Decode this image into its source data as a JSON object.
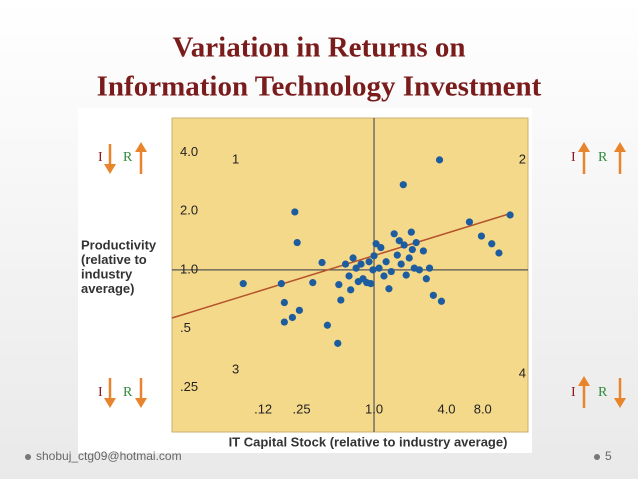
{
  "slide": {
    "title": [
      "Variation in Returns on",
      "Information Technology Investment"
    ],
    "footer": "shobuj_ctg09@hotmai.com",
    "page_number": "5"
  },
  "quadrant_indicators": [
    {
      "investment": "I",
      "returns": "R"
    },
    {
      "investment": "I",
      "returns": "R"
    },
    {
      "investment": "I",
      "returns": "R"
    },
    {
      "investment": "I",
      "returns": "R"
    }
  ],
  "chart_data": {
    "type": "scatter",
    "xlabel": "IT Capital Stock (relative to industry average)",
    "ylabel": [
      "Productivity",
      "(relative to",
      "industry",
      "average)"
    ],
    "quadrants": [
      "1",
      "2",
      "3",
      "4"
    ],
    "xscale": "log",
    "yscale": "log",
    "xlim": [
      0.021,
      19
    ],
    "ylim": [
      0.17,
      6
    ],
    "xticks": [
      {
        "value": 0.12,
        "label": ".12"
      },
      {
        "value": 0.25,
        "label": ".25"
      },
      {
        "value": 1,
        "label": "1.0"
      },
      {
        "value": 4,
        "label": "4.0"
      },
      {
        "value": 8,
        "label": "8.0"
      }
    ],
    "yticks": [
      {
        "value": 4,
        "label": "4.0"
      },
      {
        "value": 2,
        "label": "2.0"
      },
      {
        "value": 1,
        "label": "1.0"
      },
      {
        "value": 0.5,
        "label": ".5"
      },
      {
        "value": 0.25,
        "label": ".25"
      }
    ],
    "quadrant_split": {
      "x": 1,
      "y": 1
    },
    "series": [
      {
        "color": "#1d5c9e",
        "x": [
          0.082,
          0.17,
          0.18,
          0.21,
          0.18,
          0.24,
          0.22,
          0.23,
          0.37,
          0.31,
          0.41,
          0.5,
          0.53,
          0.51,
          0.58,
          0.62,
          0.64,
          0.67,
          0.71,
          0.74,
          0.78,
          0.81,
          0.87,
          0.94,
          0.91,
          0.98,
          1,
          1.04,
          1.14,
          1.1,
          1.26,
          1.21,
          1.33,
          1.39,
          1.47,
          1.56,
          1.62,
          1.68,
          1.78,
          1.85,
          1.96,
          2.04,
          2.08,
          2.16,
          2.24,
          2.38,
          2.57,
          2.89,
          2.72,
          3.11,
          3.63,
          3.5,
          1.75,
          6.2,
          7.8,
          9.5,
          10.9,
          13.5
        ],
        "y": [
          0.85,
          0.85,
          0.68,
          0.57,
          0.54,
          0.62,
          1.98,
          1.38,
          1.09,
          0.86,
          0.52,
          0.42,
          0.7,
          0.84,
          1.07,
          0.93,
          0.79,
          1.15,
          1.02,
          0.87,
          1.07,
          0.9,
          0.86,
          0.85,
          1.1,
          1,
          1.18,
          1.36,
          1.3,
          1.02,
          1.1,
          0.93,
          0.8,
          0.98,
          1.53,
          1.19,
          1.41,
          1.07,
          1.34,
          0.94,
          1.15,
          1.56,
          1.27,
          1.02,
          1.38,
          1,
          1.25,
          1.02,
          0.9,
          0.74,
          0.69,
          3.66,
          2.73,
          1.76,
          1.49,
          1.36,
          1.22,
          1.91
        ]
      }
    ]
  }
}
